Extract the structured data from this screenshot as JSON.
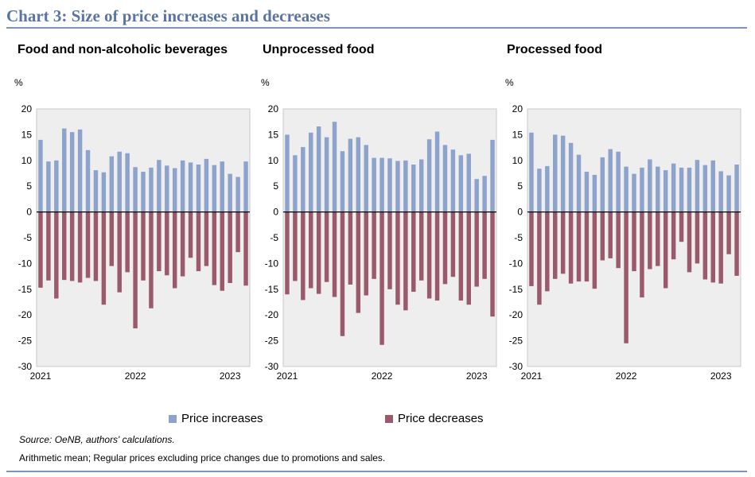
{
  "header": {
    "title": "Chart 3: Size of price increases and decreases"
  },
  "legend": {
    "increase_label": "Price increases",
    "decrease_label": "Price decreases"
  },
  "colors": {
    "increase": "#8ea3cc",
    "decrease": "#9b5a6b"
  },
  "footer": {
    "source": "Source: OeNB, authors' calculations.",
    "note": "Arithmetic mean; Regular prices excluding price changes due to promotions and sales."
  },
  "chart_data": [
    {
      "type": "bar",
      "title": "Food and non-alcoholic beverages",
      "ylabel": "%",
      "ylim": [
        -30,
        20
      ],
      "yticks": [
        "20",
        "15",
        "10",
        "5",
        "0",
        "-5",
        "-10",
        "-15",
        "-20",
        "-25",
        "-30"
      ],
      "xticks": [
        {
          "label": "2021",
          "index": 0
        },
        {
          "label": "2022",
          "index": 12
        },
        {
          "label": "2023",
          "index": 24
        }
      ],
      "series": [
        {
          "name": "Price increases",
          "values": [
            14.0,
            9.8,
            10.0,
            16.2,
            15.5,
            16.0,
            12.0,
            8.1,
            7.7,
            10.8,
            11.7,
            11.4,
            8.7,
            7.8,
            8.6,
            10.1,
            9.0,
            8.5,
            10.0,
            9.6,
            9.2,
            10.3,
            9.1,
            9.8,
            7.4,
            6.8,
            9.8
          ]
        },
        {
          "name": "Price decreases",
          "values": [
            -14.7,
            -13.3,
            -16.8,
            -13.2,
            -13.4,
            -13.7,
            -12.8,
            -13.4,
            -18.0,
            -10.5,
            -15.6,
            -11.7,
            -22.6,
            -13.3,
            -18.7,
            -11.5,
            -12.3,
            -14.8,
            -12.5,
            -8.9,
            -11.5,
            -10.5,
            -14.2,
            -15.3,
            -13.8,
            -7.8,
            -14.3
          ]
        }
      ]
    },
    {
      "type": "bar",
      "title": "Unprocessed food",
      "ylabel": "%",
      "ylim": [
        -30,
        20
      ],
      "yticks": [
        "20",
        "15",
        "10",
        "5",
        "0",
        "-5",
        "-10",
        "-15",
        "-20",
        "-25",
        "-30"
      ],
      "xticks": [
        {
          "label": "2021",
          "index": 0
        },
        {
          "label": "2022",
          "index": 12
        },
        {
          "label": "2023",
          "index": 24
        }
      ],
      "series": [
        {
          "name": "Price increases",
          "values": [
            15.0,
            11.0,
            12.6,
            15.4,
            16.6,
            14.5,
            17.5,
            11.8,
            14.2,
            14.5,
            13.0,
            10.5,
            10.5,
            10.4,
            9.9,
            10.0,
            9.2,
            10.2,
            14.1,
            15.6,
            13.0,
            12.1,
            11.0,
            11.3,
            6.4,
            7.0,
            14.0
          ]
        },
        {
          "name": "Price decreases",
          "values": [
            -16.0,
            -13.4,
            -17.1,
            -14.8,
            -15.9,
            -13.6,
            -16.5,
            -24.1,
            -14.1,
            -19.6,
            -16.2,
            -13.0,
            -25.8,
            -15.0,
            -18.0,
            -19.1,
            -15.5,
            -13.3,
            -16.8,
            -17.2,
            -14.0,
            -12.6,
            -17.2,
            -18.0,
            -14.5,
            -13.0,
            -20.3
          ]
        }
      ]
    },
    {
      "type": "bar",
      "title": "Processed food",
      "ylabel": "%",
      "ylim": [
        -30,
        20
      ],
      "yticks": [
        "20",
        "15",
        "10",
        "5",
        "0",
        "-5",
        "-10",
        "-15",
        "-20",
        "-25",
        "-30"
      ],
      "xticks": [
        {
          "label": "2021",
          "index": 0
        },
        {
          "label": "2022",
          "index": 12
        },
        {
          "label": "2023",
          "index": 24
        }
      ],
      "series": [
        {
          "name": "Price increases",
          "values": [
            15.4,
            8.4,
            8.9,
            15.0,
            14.8,
            13.4,
            11.1,
            7.8,
            7.2,
            10.6,
            12.2,
            11.7,
            8.8,
            7.4,
            8.6,
            10.2,
            8.8,
            8.1,
            9.4,
            8.6,
            8.6,
            10.1,
            9.1,
            10.0,
            7.9,
            7.1,
            9.2
          ]
        },
        {
          "name": "Price decreases",
          "values": [
            -14.4,
            -18.0,
            -15.4,
            -13.0,
            -12.0,
            -13.9,
            -13.5,
            -13.5,
            -14.9,
            -9.4,
            -9.0,
            -10.9,
            -25.5,
            -11.5,
            -16.6,
            -11.1,
            -10.5,
            -14.8,
            -9.2,
            -5.8,
            -11.7,
            -10.0,
            -13.1,
            -13.7,
            -13.9,
            -8.2,
            -12.4
          ]
        }
      ]
    }
  ]
}
